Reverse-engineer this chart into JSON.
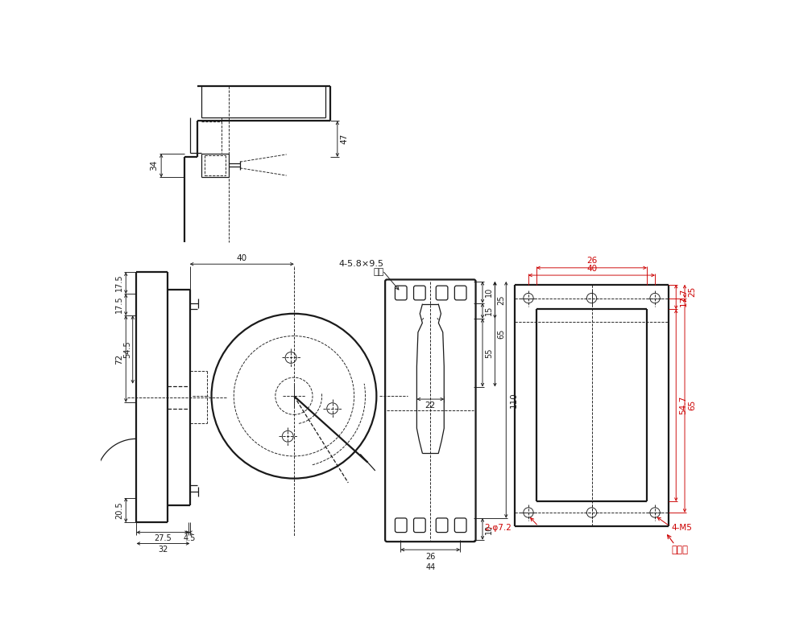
{
  "bg_color": "#ffffff",
  "lc": "#1a1a1a",
  "rc": "#cc0000",
  "annotations": {
    "dim_47": "47",
    "dim_34": "34",
    "dim_40": "40",
    "dim_175a": "17.5",
    "dim_175b": "17.5",
    "dim_72": "72",
    "dim_545": "54.5",
    "dim_205": "20.5",
    "dim_275": "27.5",
    "dim_45": "4.5",
    "dim_32": "32",
    "hole_label": "4-5.8×9.5",
    "hole_label2": "長孔",
    "dim_10a": "10",
    "dim_15": "15",
    "dim_25a": "25",
    "dim_55": "55",
    "dim_65a": "65",
    "dim_110": "110",
    "dim_10b": "10",
    "dim_22": "22",
    "dim_26a": "26",
    "dim_44": "44",
    "dim_40r": "40",
    "dim_26r": "26",
    "dim_177": "17.7",
    "dim_25r": "25",
    "dim_547": "54.7",
    "dim_65r": "65",
    "label_2phi72": "2-φ7.2",
    "label_4m5": "4-M5",
    "label_kirikaki": "切欠き"
  }
}
